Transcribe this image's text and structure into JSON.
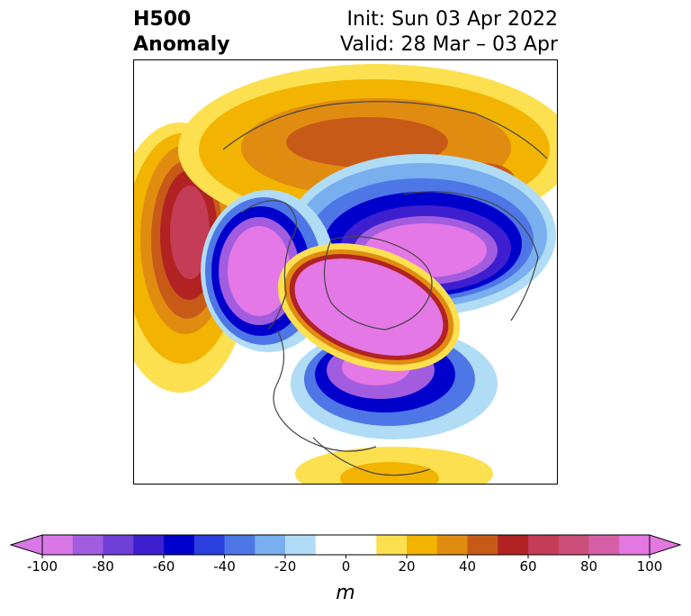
{
  "title": {
    "left_line1": "H500",
    "left_line2": "Anomaly",
    "right_line1": "Init: Sun 03 Apr 2022",
    "right_line2": "Valid: 28 Mar – 03 Apr"
  },
  "colorbar": {
    "unit": "m",
    "ticks": [
      "-100",
      "-80",
      "-60",
      "-40",
      "-20",
      "0",
      "20",
      "40",
      "60",
      "80",
      "100"
    ],
    "colors": [
      "#d977e6",
      "#a25ce0",
      "#6f3fd8",
      "#3d1fd0",
      "#0000cc",
      "#2a3fdd",
      "#4e76e6",
      "#79aeef",
      "#b0dcf6",
      "#ffffff",
      "#ffffff",
      "#fde050",
      "#f2b400",
      "#e08c10",
      "#c85a18",
      "#b22222",
      "#c43c55",
      "#cc4f7a",
      "#d660a8",
      "#e278e0"
    ]
  },
  "map": {
    "projection": "north-polar-stereographic",
    "colors": {
      "ocean_land_bg": "#ffffff",
      "coastline": "#444444",
      "neg_100": "#e478e6",
      "neg_60": "#0000cc",
      "neg_40": "#4e76e6",
      "neg_20": "#b0dcf6",
      "pos_20": "#fde050",
      "pos_40": "#f2b400",
      "pos_60": "#c85a18",
      "pos_80": "#b22222",
      "pos_100": "#c43c55"
    }
  }
}
